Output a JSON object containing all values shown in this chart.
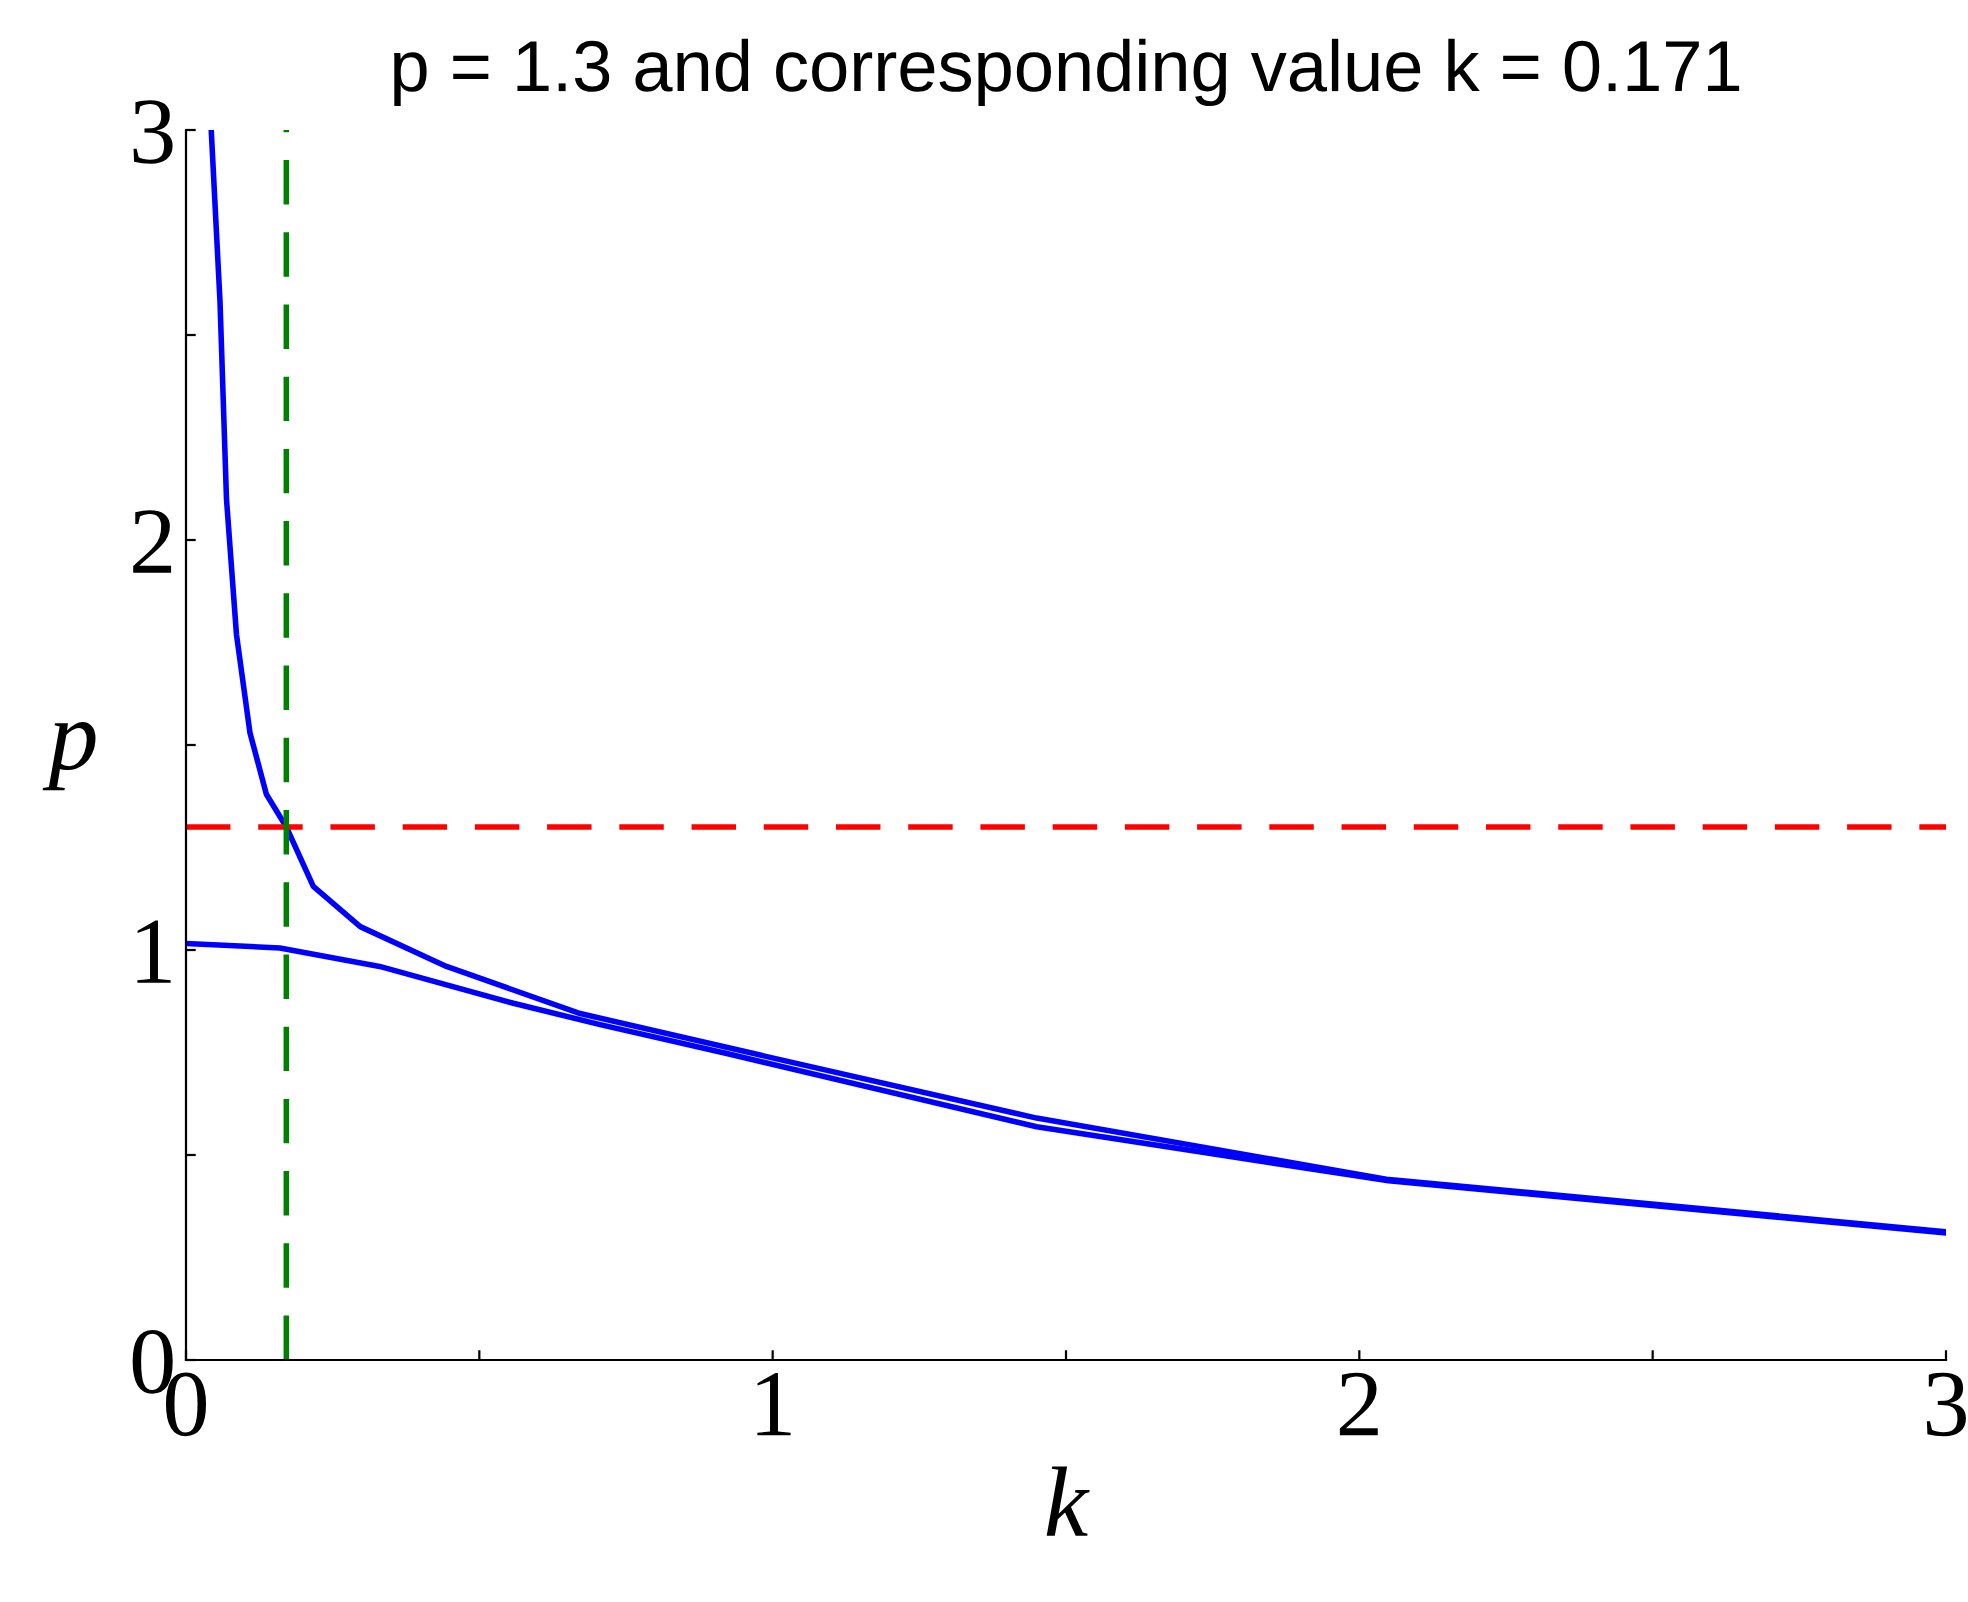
{
  "chart_data": {
    "type": "line",
    "title": "p = 1.3 and corresponding value k = 0.171",
    "xlabel": "k",
    "ylabel": "p",
    "xlim": [
      0,
      3
    ],
    "ylim": [
      0,
      3
    ],
    "xticks": [
      0,
      {
        "value": 0.5,
        "label": null
      },
      1,
      {
        "value": 1.5,
        "label": null
      },
      2,
      {
        "value": 2.5,
        "label": null
      },
      3
    ],
    "yticks": [
      0,
      {
        "value": 0.5,
        "label": null
      },
      1,
      {
        "value": 1.5,
        "label": null
      },
      2,
      {
        "value": 2.5,
        "label": null
      },
      3
    ],
    "grid": false,
    "legend": false,
    "marker": "none",
    "line_style": "solid",
    "series": [
      {
        "color": "#0000ff",
        "x": [
          0.043,
          0.058,
          0.069,
          0.086,
          0.109,
          0.137,
          0.171,
          0.217,
          0.297,
          0.444,
          0.672,
          0.99,
          1.45,
          2.046,
          3.0
        ],
        "values": [
          3.0,
          2.58,
          2.1,
          1.77,
          1.53,
          1.38,
          1.3,
          1.155,
          1.057,
          0.96,
          0.845,
          0.74,
          0.59,
          0.441,
          0.313
        ]
      },
      {
        "color": "#0000ff",
        "x": [
          0,
          0.16,
          0.33,
          0.558,
          0.706,
          0.92,
          1.45,
          2.05,
          3.0
        ],
        "values": [
          1.016,
          1.005,
          0.96,
          0.87,
          0.818,
          0.748,
          0.569,
          0.437,
          0.31
        ]
      }
    ],
    "ref_lines": [
      {
        "axis": "y",
        "value": 1.3,
        "color": "#ff0000",
        "line_style": "dashed"
      },
      {
        "axis": "x",
        "value": 0.171,
        "color": "#008000",
        "line_style": "dashed"
      }
    ]
  }
}
